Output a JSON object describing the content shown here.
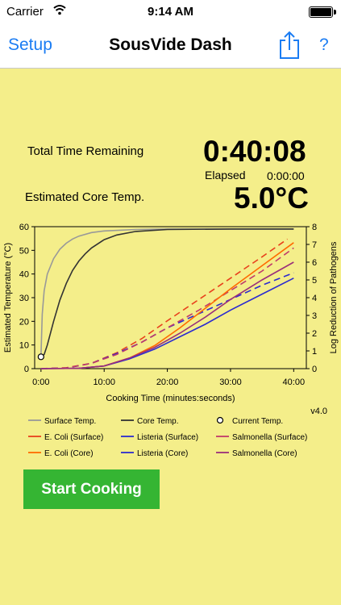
{
  "status_bar": {
    "carrier": "Carrier",
    "time": "9:14 AM"
  },
  "nav": {
    "left_label": "Setup",
    "title": "SousVide Dash",
    "right_label": "?",
    "share_icon": "share-icon"
  },
  "readouts": {
    "total_time_label": "Total Time Remaining",
    "total_time_value": "0:40:08",
    "elapsed_label": "Elapsed",
    "elapsed_value": "0:00:00",
    "core_temp_label": "Estimated Core Temp.",
    "core_temp_value": "5.0°C"
  },
  "version": "v4.0",
  "start_button_label": "Start Cooking",
  "chart_data": {
    "type": "line",
    "xlabel": "Cooking Time (minutes:seconds)",
    "ylabel": "Estimated Temperature (°C)",
    "y2label": "Log Reduction of Pathogens",
    "xlim": [
      -1,
      42
    ],
    "ylim": [
      0,
      60
    ],
    "y2lim": [
      0,
      8
    ],
    "x_ticks": [
      0,
      10,
      20,
      30,
      40
    ],
    "x_tick_labels": [
      "0:00",
      "10:00",
      "20:00",
      "30:00",
      "40:00"
    ],
    "y_ticks": [
      0,
      10,
      20,
      30,
      40,
      50,
      60
    ],
    "y2_ticks": [
      0,
      1,
      2,
      3,
      4,
      5,
      6,
      7,
      8
    ],
    "current_point": {
      "x": 0,
      "y": 5
    },
    "series": [
      {
        "name": "Surface Temp.",
        "axis": "left",
        "color": "#999999",
        "dash": false,
        "points": [
          [
            0,
            5
          ],
          [
            0.2,
            23
          ],
          [
            0.5,
            33
          ],
          [
            1,
            40
          ],
          [
            2,
            46.5
          ],
          [
            3,
            50.5
          ],
          [
            4,
            53
          ],
          [
            5,
            54.8
          ],
          [
            6,
            56
          ],
          [
            8,
            57.5
          ],
          [
            10,
            58.2
          ],
          [
            15,
            58.8
          ],
          [
            20,
            59
          ],
          [
            30,
            59
          ],
          [
            40,
            59
          ]
        ]
      },
      {
        "name": "Core Temp.",
        "axis": "left",
        "color": "#333333",
        "dash": false,
        "points": [
          [
            0,
            5
          ],
          [
            0.5,
            6
          ],
          [
            1,
            10
          ],
          [
            2,
            20
          ],
          [
            3,
            29
          ],
          [
            4,
            36
          ],
          [
            5,
            41.5
          ],
          [
            6,
            45.5
          ],
          [
            7,
            48.5
          ],
          [
            8,
            51
          ],
          [
            10,
            54.5
          ],
          [
            12,
            56.5
          ],
          [
            15,
            58
          ],
          [
            20,
            58.8
          ],
          [
            30,
            59
          ],
          [
            40,
            59
          ]
        ]
      },
      {
        "name": "E. Coli (Surface)",
        "axis": "right",
        "color": "#e8401c",
        "dash": true,
        "points": [
          [
            0,
            0
          ],
          [
            4,
            0.05
          ],
          [
            8,
            0.3
          ],
          [
            12,
            0.9
          ],
          [
            16,
            1.7
          ],
          [
            20,
            2.7
          ],
          [
            25,
            3.9
          ],
          [
            30,
            5.1
          ],
          [
            35,
            6.3
          ],
          [
            39,
            7.3
          ]
        ]
      },
      {
        "name": "Listeria (Surface)",
        "axis": "right",
        "color": "#2b2bd0",
        "dash": true,
        "points": [
          [
            0,
            0
          ],
          [
            4,
            0.03
          ],
          [
            8,
            0.3
          ],
          [
            12,
            0.85
          ],
          [
            16,
            1.5
          ],
          [
            20,
            2.3
          ],
          [
            25,
            3.1
          ],
          [
            30,
            3.9
          ],
          [
            35,
            4.7
          ],
          [
            40,
            5.4
          ]
        ]
      },
      {
        "name": "Salmonella (Surface)",
        "axis": "right",
        "color": "#c03a6a",
        "dash": true,
        "points": [
          [
            0,
            0
          ],
          [
            4,
            0.04
          ],
          [
            8,
            0.3
          ],
          [
            12,
            0.8
          ],
          [
            16,
            1.5
          ],
          [
            20,
            2.3
          ],
          [
            25,
            3.3
          ],
          [
            30,
            4.4
          ],
          [
            35,
            5.5
          ],
          [
            40,
            6.8
          ]
        ]
      },
      {
        "name": "E. Coli (Core)",
        "axis": "right",
        "color": "#ff6a00",
        "dash": false,
        "points": [
          [
            0,
            0
          ],
          [
            6,
            0.02
          ],
          [
            10,
            0.15
          ],
          [
            14,
            0.6
          ],
          [
            18,
            1.3
          ],
          [
            22,
            2.3
          ],
          [
            26,
            3.4
          ],
          [
            30,
            4.5
          ],
          [
            35,
            5.8
          ],
          [
            40,
            7.1
          ]
        ]
      },
      {
        "name": "Listeria (Core)",
        "axis": "right",
        "color": "#2b2bd0",
        "dash": false,
        "points": [
          [
            0,
            0
          ],
          [
            6,
            0.02
          ],
          [
            10,
            0.15
          ],
          [
            14,
            0.55
          ],
          [
            18,
            1.1
          ],
          [
            22,
            1.8
          ],
          [
            26,
            2.5
          ],
          [
            30,
            3.3
          ],
          [
            35,
            4.2
          ],
          [
            40,
            5.1
          ]
        ]
      },
      {
        "name": "Salmonella (Core)",
        "axis": "right",
        "color": "#9a2f7a",
        "dash": false,
        "points": [
          [
            0,
            0
          ],
          [
            6,
            0.02
          ],
          [
            10,
            0.15
          ],
          [
            14,
            0.6
          ],
          [
            18,
            1.2
          ],
          [
            22,
            2.0
          ],
          [
            26,
            2.9
          ],
          [
            30,
            3.9
          ],
          [
            35,
            5.0
          ],
          [
            40,
            6.0
          ]
        ]
      }
    ],
    "legend": [
      {
        "label": "Surface Temp.",
        "color": "#999999",
        "style": "line"
      },
      {
        "label": "Core Temp.",
        "color": "#333333",
        "style": "line"
      },
      {
        "label": "Current Temp.",
        "color": "#000000",
        "style": "marker"
      },
      {
        "label": "E. Coli (Surface)",
        "color": "#e8401c",
        "style": "line"
      },
      {
        "label": "Listeria (Surface)",
        "color": "#2b2bd0",
        "style": "line"
      },
      {
        "label": "Salmonella (Surface)",
        "color": "#c03a6a",
        "style": "line"
      },
      {
        "label": "E. Coli (Core)",
        "color": "#ff6a00",
        "style": "line"
      },
      {
        "label": "Listeria (Core)",
        "color": "#2b2bd0",
        "style": "line"
      },
      {
        "label": "Salmonella (Core)",
        "color": "#9a2f7a",
        "style": "line"
      }
    ]
  }
}
